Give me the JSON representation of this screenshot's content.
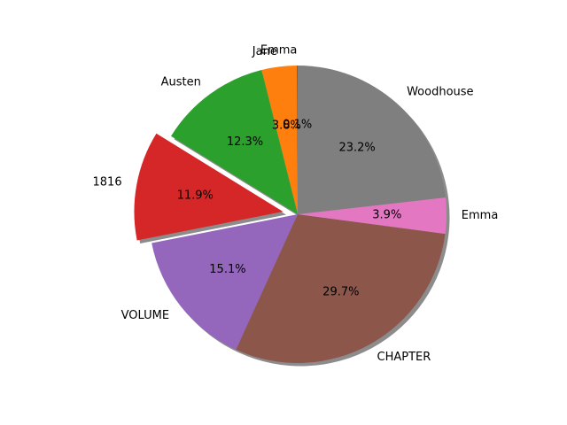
{
  "chart_data": {
    "type": "pie",
    "title": "",
    "start_angle_deg": 90,
    "direction": "counterclockwise",
    "shadow": true,
    "slices": [
      {
        "label": "Emma",
        "value": 0.1,
        "pct_label": "0.1%",
        "color": "#1f77b4",
        "exploded": false
      },
      {
        "label": "Jane",
        "value": 3.8,
        "pct_label": "3.8%",
        "color": "#ff7f0e",
        "exploded": false
      },
      {
        "label": "Austen",
        "value": 12.3,
        "pct_label": "12.3%",
        "color": "#2ca02c",
        "exploded": false
      },
      {
        "label": "1816",
        "value": 11.9,
        "pct_label": "11.9%",
        "color": "#d62728",
        "exploded": true
      },
      {
        "label": "VOLUME",
        "value": 15.1,
        "pct_label": "15.1%",
        "color": "#9467bd",
        "exploded": false
      },
      {
        "label": "CHAPTER",
        "value": 29.7,
        "pct_label": "29.7%",
        "color": "#8c564b",
        "exploded": false
      },
      {
        "label": "Emma",
        "value": 3.9,
        "pct_label": "3.9%",
        "color": "#e377c2",
        "exploded": false
      },
      {
        "label": "Woodhouse",
        "value": 23.2,
        "pct_label": "23.2%",
        "color": "#7f7f7f",
        "exploded": false
      }
    ]
  }
}
